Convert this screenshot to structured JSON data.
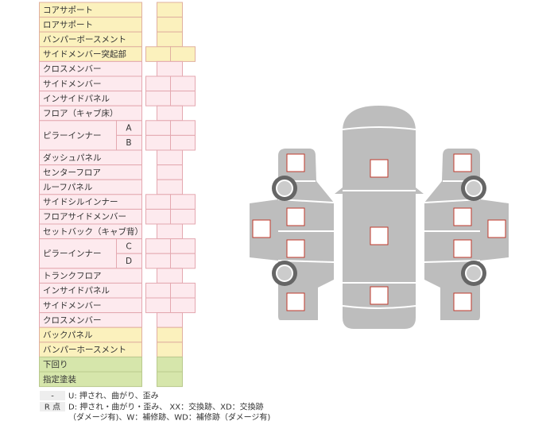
{
  "rows": [
    {
      "label": "コアサポート"
    },
    {
      "label": "ロアサポート"
    },
    {
      "label": "バンパーボースメント"
    },
    {
      "label": "サイドメンバー突起部"
    },
    {
      "label": "クロスメンバー"
    },
    {
      "label": "サイドメンバー"
    },
    {
      "label": "インサイドパネル"
    },
    {
      "label": "フロア（キャブ床）"
    },
    {
      "label": "ピラーインナー",
      "parts": [
        "A",
        "B"
      ]
    },
    {
      "label": "ダッシュパネル"
    },
    {
      "label": "センターフロア"
    },
    {
      "label": "ルーフパネル"
    },
    {
      "label": "サイドシルインナー"
    },
    {
      "label": "フロアサイドメンバー"
    },
    {
      "label": "セットバック（キャブ背）"
    },
    {
      "label": "ピラーインナー",
      "parts": [
        "C",
        "D"
      ]
    },
    {
      "label": "トランクフロア"
    },
    {
      "label": "インサイドパネル"
    },
    {
      "label": "サイドメンバー"
    },
    {
      "label": "クロスメンバー"
    },
    {
      "label": "バックパネル"
    },
    {
      "label": "バンパーホースメント"
    },
    {
      "label": "下回り"
    },
    {
      "label": "指定塗装"
    }
  ],
  "legend": [
    {
      "key": "-",
      "lines": [
        "U: 押され、曲がり、歪み"
      ]
    },
    {
      "key": "R 点",
      "lines": [
        "D: 押され・曲がり・歪み、 XX：交換跡、XD：交換跡",
        "（ダメージ有)、W：補修跡、WD：補修跡（ダメージ有)"
      ]
    }
  ]
}
